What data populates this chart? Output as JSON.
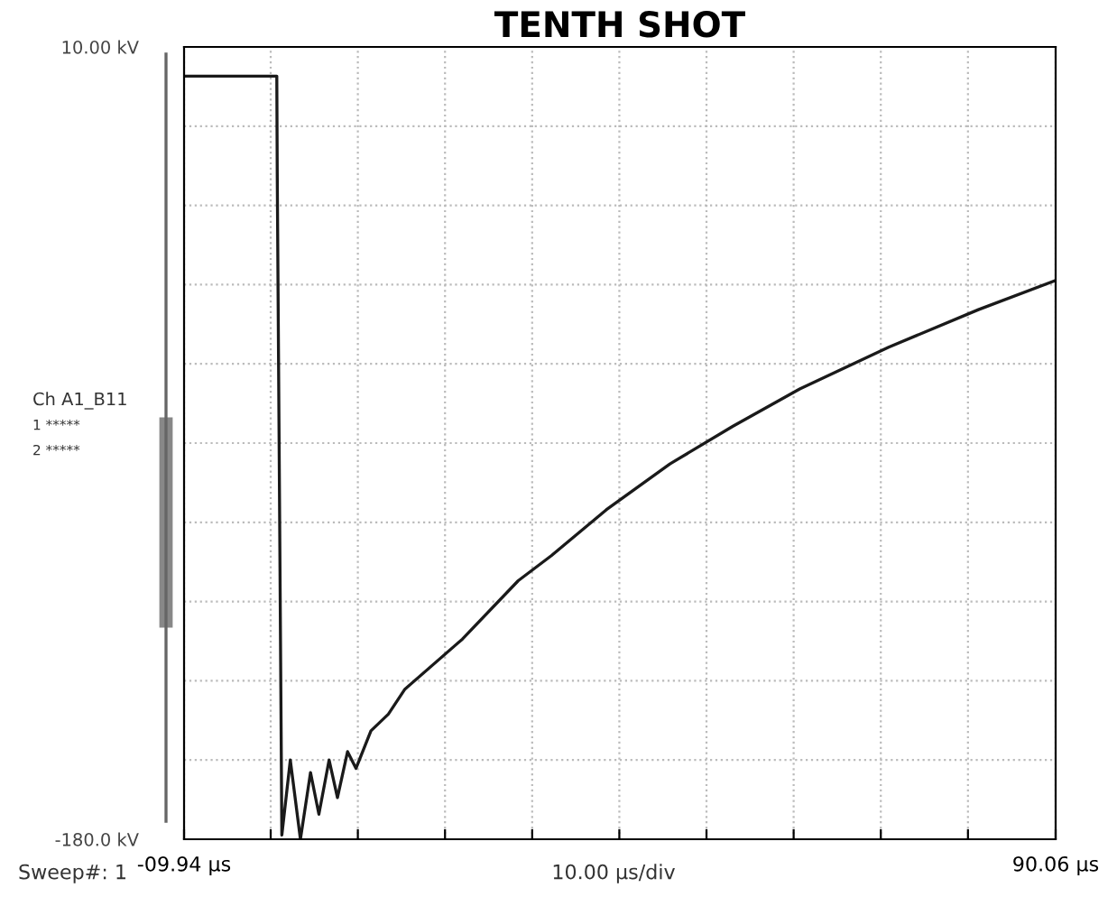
{
  "chart_data": {
    "type": "line",
    "title": "TENTH SHOT",
    "x": [
      -9.94,
      0.7,
      0.75,
      1.28,
      2.25,
      3.41,
      4.57,
      5.53,
      6.7,
      7.66,
      8.82,
      9.79,
      11.5,
      13.5,
      15.4,
      22.0,
      28.4,
      32.2,
      38.5,
      45.8,
      53.0,
      60.7,
      70.9,
      81.2,
      90.06
    ],
    "series": [
      {
        "color": "#1a1a1a",
        "values": [
          3,
          3,
          -20,
          -179,
          -161,
          -180,
          -164,
          -174,
          -161,
          -170,
          -159,
          -163,
          -154,
          -150,
          -144,
          -132,
          -118,
          -112,
          -101,
          -90,
          -81,
          -72,
          -62,
          -53,
          -46
        ]
      }
    ],
    "xlim": [
      -9.94,
      90.06
    ],
    "xticks": [
      {
        "value": -9.94,
        "label": "-09.94 µs"
      },
      {
        "value": 0,
        "label": null
      },
      {
        "value": 10,
        "label": null
      },
      {
        "value": 20,
        "label": null
      },
      {
        "value": 30,
        "label": null
      },
      {
        "value": 40,
        "label": null
      },
      {
        "value": 50,
        "label": null
      },
      {
        "value": 60,
        "label": null
      },
      {
        "value": 70,
        "label": null
      },
      {
        "value": 80,
        "label": null
      },
      {
        "value": 90.06,
        "label": "90.06 µs"
      }
    ],
    "ylim": [
      -180,
      10
    ],
    "yticks": [
      {
        "value": 10,
        "label": "10.00 kV"
      },
      {
        "value": -9,
        "label": null
      },
      {
        "value": -28,
        "label": null
      },
      {
        "value": -47,
        "label": null
      },
      {
        "value": -66,
        "label": null
      },
      {
        "value": -85,
        "label": null
      },
      {
        "value": -104,
        "label": null
      },
      {
        "value": -123,
        "label": null
      },
      {
        "value": -142,
        "label": null
      },
      {
        "value": -161,
        "label": null
      },
      {
        "value": -180,
        "label": "-180.0 kV"
      }
    ],
    "grid": true,
    "line_style": "solid",
    "marker": "none",
    "annotations": [
      "Ch A1_B11",
      "1 *****",
      "2 *****",
      "Sweep#: 1",
      "10.00 µs/div"
    ]
  }
}
